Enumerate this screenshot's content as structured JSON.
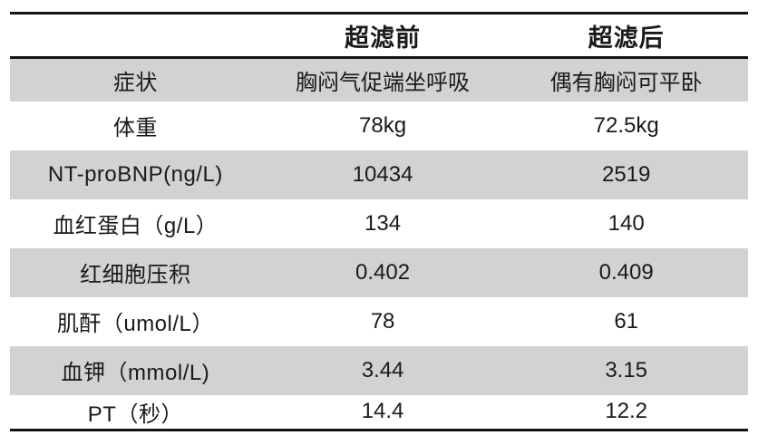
{
  "chart_data": {
    "type": "table",
    "columns": [
      "",
      "超滤前",
      "超滤后"
    ],
    "rows": [
      {
        "label": "症状",
        "before": "胸闷气促端坐呼吸",
        "after": "偶有胸闷可平卧"
      },
      {
        "label": "体重",
        "before": "78kg",
        "after": "72.5kg"
      },
      {
        "label": "NT-proBNP(ng/L)",
        "before": "10434",
        "after": "2519"
      },
      {
        "label": "血红蛋白（g/L）",
        "before": "134",
        "after": "140"
      },
      {
        "label": "红细胞压积",
        "before": "0.402",
        "after": "0.409"
      },
      {
        "label": "肌酐（umol/L）",
        "before": "78",
        "after": "61"
      },
      {
        "label": "血钾（mmol/L)",
        "before": "3.44",
        "after": "3.15"
      },
      {
        "label": "PT（秒）",
        "before": "14.4",
        "after": "12.2"
      }
    ],
    "layout": {
      "striped_rows": "odd",
      "stripe_color": "#d2d2d2",
      "rule_color": "#141414",
      "text_color": "#1a1a1a",
      "grid": "horizontal-rules-only",
      "header_style": "bold"
    }
  }
}
